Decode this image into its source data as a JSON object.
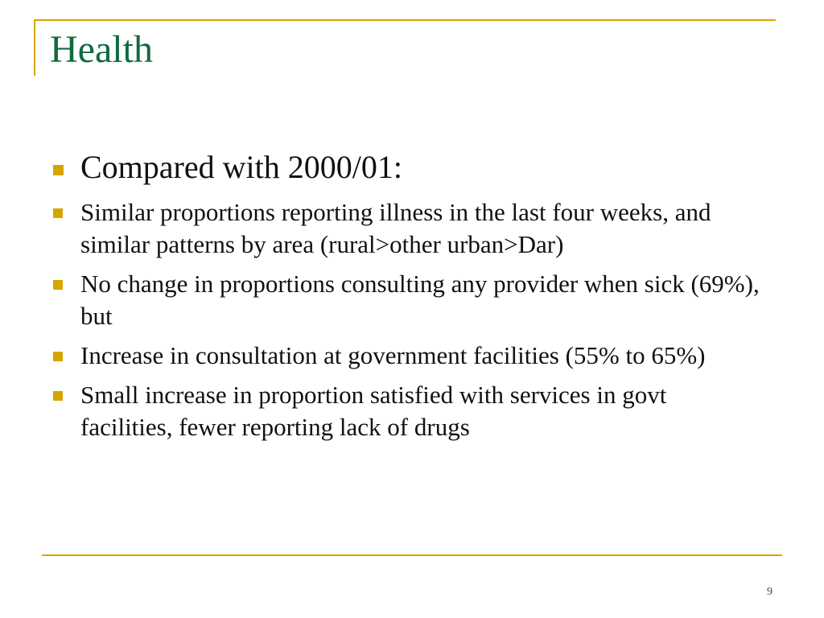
{
  "slide": {
    "title": "Health",
    "bullets": [
      {
        "text": "Compared with 2000/01:"
      },
      {
        "text": "Similar proportions reporting illness in the last four weeks, and similar patterns by area (rural>other urban>Dar)"
      },
      {
        "text": "No change in proportions consulting any provider when sick (69%), but"
      },
      {
        "text": "Increase in consultation at government facilities (55% to 65%)"
      },
      {
        "text": "Small increase in proportion satisfied with services in govt facilities, fewer reporting lack of  drugs"
      }
    ],
    "page_number": "9",
    "colors": {
      "title": "#0f6a3d",
      "accent": "#d7a500",
      "text": "#111111"
    }
  }
}
